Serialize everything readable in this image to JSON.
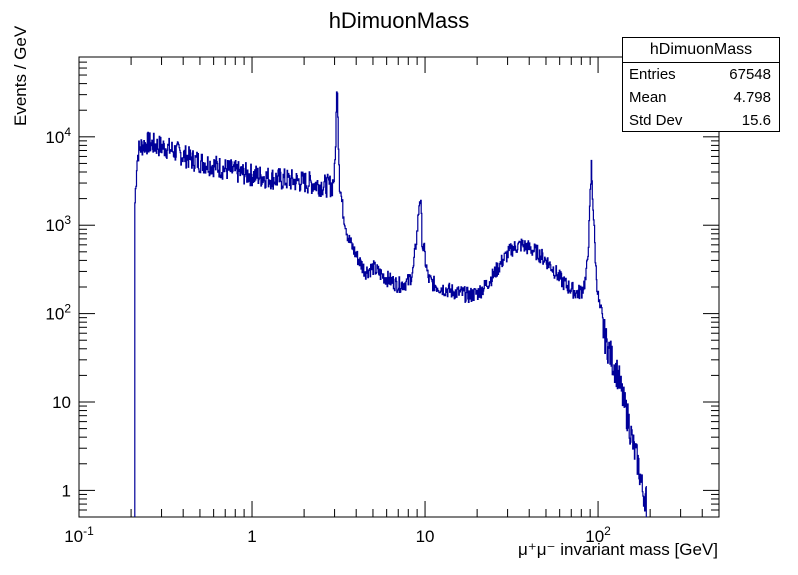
{
  "chart_data": {
    "type": "line",
    "title": "hDimuonMass",
    "ylabel": "Events / GeV",
    "xlabel": "μ⁺μ⁻ invariant mass [GeV]",
    "xscale": "log",
    "yscale": "log",
    "xlim": [
      0.1,
      500
    ],
    "ylim": [
      0.5,
      80000
    ],
    "x_ticks": [
      "10^-1",
      "1",
      "10",
      "10^2"
    ],
    "y_ticks": [
      "1",
      "10",
      "10^2",
      "10^3",
      "10^4"
    ],
    "series": [
      {
        "color": "#000099",
        "x": [
          0.21,
          0.215,
          0.22,
          0.23,
          0.25,
          0.28,
          0.32,
          0.38,
          0.45,
          0.55,
          0.7,
          0.85,
          1.0,
          1.3,
          1.7,
          2.2,
          2.6,
          2.9,
          3.0,
          3.05,
          3.1,
          3.15,
          3.2,
          3.35,
          3.6,
          4.0,
          4.5,
          5.0,
          5.5,
          6.0,
          7.0,
          8.0,
          8.5,
          9.0,
          9.3,
          9.46,
          9.6,
          9.9,
          10.0,
          10.4,
          11.0,
          12.0,
          14.0,
          16.0,
          18.0,
          20.0,
          22.0,
          25.0,
          28.0,
          32.0,
          36.0,
          40.0,
          45.0,
          50.0,
          55.0,
          60.0,
          65.0,
          70.0,
          75.0,
          80.0,
          85.0,
          88.0,
          91.2,
          94.0,
          97.0,
          100.0,
          105.0,
          110.0,
          120.0,
          130.0,
          140.0,
          150.0,
          160.0,
          170.0,
          180.0,
          190.0
        ],
        "y": [
          1800,
          5000,
          7000,
          8000,
          8500,
          8000,
          7500,
          6500,
          5500,
          5000,
          4300,
          3900,
          3700,
          3400,
          3200,
          3000,
          2800,
          2800,
          4000,
          15000,
          45000,
          9000,
          3000,
          1400,
          700,
          450,
          300,
          330,
          280,
          250,
          210,
          230,
          300,
          900,
          2200,
          1500,
          600,
          500,
          400,
          250,
          220,
          200,
          180,
          170,
          160,
          170,
          200,
          280,
          400,
          550,
          600,
          550,
          480,
          400,
          320,
          250,
          210,
          190,
          170,
          180,
          250,
          700,
          4600,
          1200,
          300,
          150,
          80,
          50,
          30,
          20,
          10,
          6,
          3,
          2,
          1,
          0.8
        ]
      }
    ],
    "stats_box": {
      "title": "hDimuonMass",
      "rows": [
        {
          "label": "Entries",
          "value": "67548"
        },
        {
          "label": "Mean",
          "value": "4.798"
        },
        {
          "label": "Std Dev",
          "value": "15.6"
        }
      ]
    }
  }
}
